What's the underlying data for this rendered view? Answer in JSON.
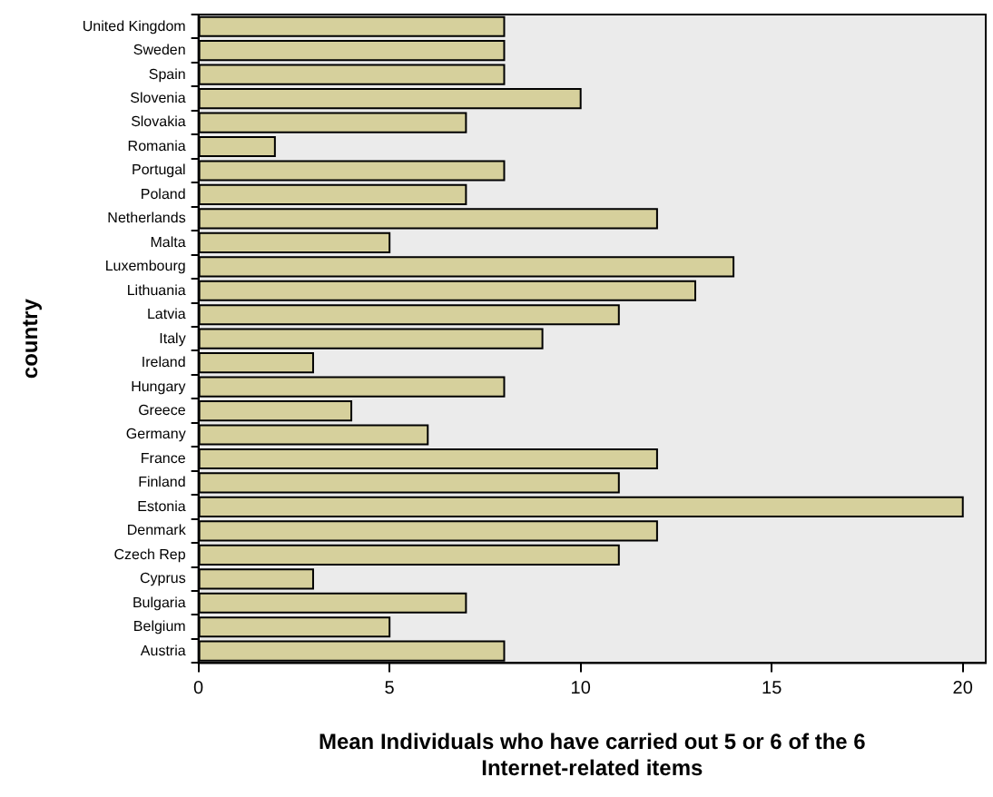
{
  "chart_data": {
    "type": "bar",
    "orientation": "horizontal",
    "xlabel": "Mean Individuals who have carried out 5 or 6 of the 6 Internet-related items",
    "ylabel": "country",
    "categories": [
      "United Kingdom",
      "Sweden",
      "Spain",
      "Slovenia",
      "Slovakia",
      "Romania",
      "Portugal",
      "Poland",
      "Netherlands",
      "Malta",
      "Luxembourg",
      "Lithuania",
      "Latvia",
      "Italy",
      "Ireland",
      "Hungary",
      "Greece",
      "Germany",
      "France",
      "Finland",
      "Estonia",
      "Denmark",
      "Czech Rep",
      "Cyprus",
      "Bulgaria",
      "Belgium",
      "Austria"
    ],
    "values": [
      8,
      8,
      8,
      10,
      7,
      2,
      8,
      7,
      12,
      5,
      14,
      13,
      11,
      9,
      3,
      8,
      4,
      6,
      12,
      11,
      20,
      12,
      11,
      3,
      7,
      5,
      8
    ],
    "color": "#d6d09c",
    "xlim": [
      0,
      20.6
    ],
    "xticks": [
      0,
      5,
      10,
      15,
      20
    ],
    "grid": false,
    "legend": false
  }
}
